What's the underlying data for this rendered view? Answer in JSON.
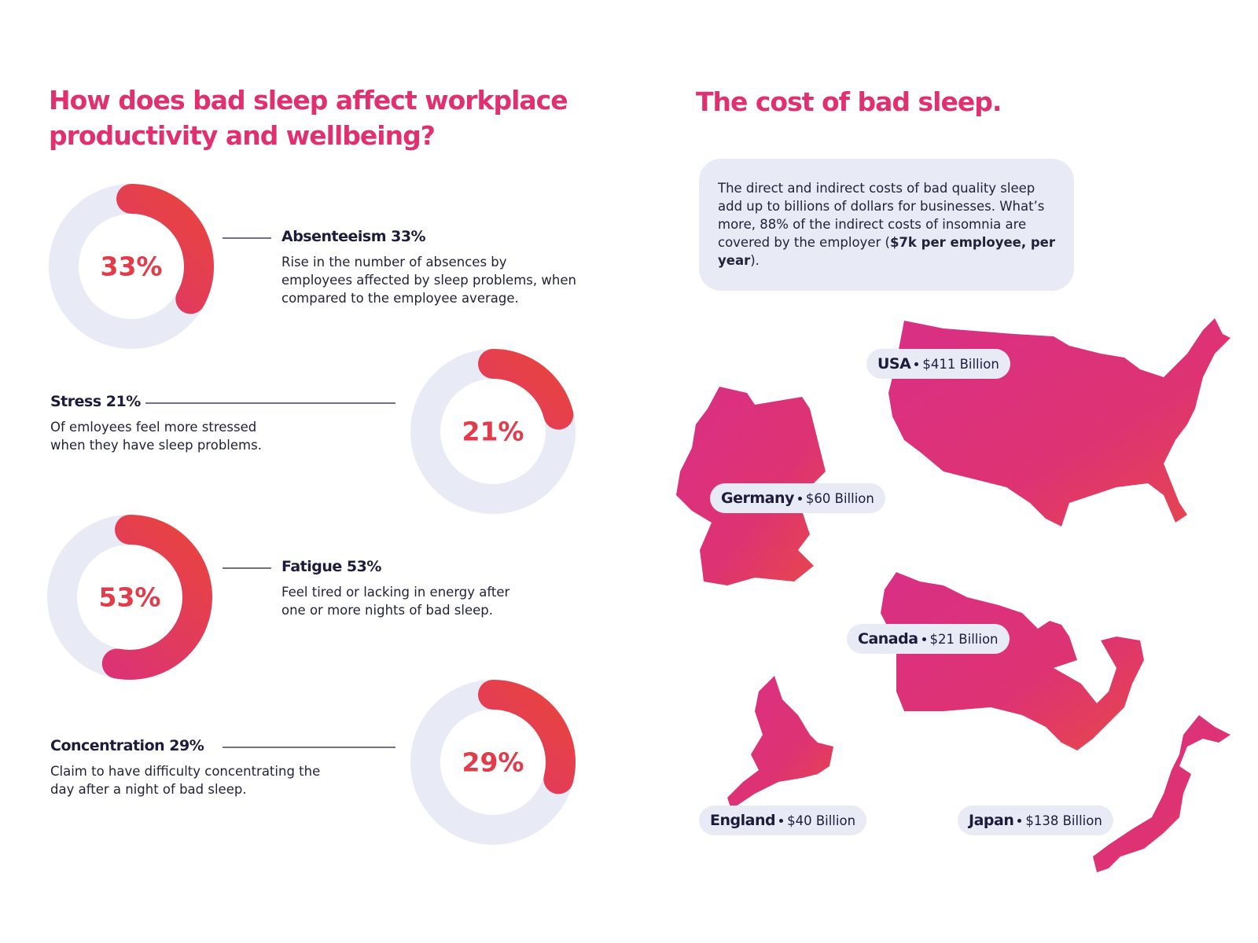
{
  "left": {
    "title": "How does bad sleep affect workplace productivity and wellbeing?",
    "stats": [
      {
        "value": 33,
        "value_label": "33%",
        "heading": "Absenteeism 33%",
        "description": "Rise in the number of absences by employees affected by sleep problems, when compared to the employee average."
      },
      {
        "value": 21,
        "value_label": "21%",
        "heading": "Stress 21%",
        "description": "Of emloyees feel more stressed when they have sleep problems."
      },
      {
        "value": 53,
        "value_label": "53%",
        "heading": "Fatigue 53%",
        "description": "Feel tired or lacking in energy after one or more nights of bad sleep."
      },
      {
        "value": 29,
        "value_label": "29%",
        "heading": "Concentration 29%",
        "description": "Claim to have difficulty concentrating the day after a night of bad sleep."
      }
    ]
  },
  "right": {
    "title": "The cost of bad sleep.",
    "intro": {
      "text": "The direct and indirect costs of bad quality sleep add up to billions of dollars for businesses. What’s more, 88% of the indirect costs of insomnia are covered by the employer (",
      "bold": "$7k per employee, per year",
      "end": ")."
    },
    "countries": [
      {
        "name": "USA",
        "cost": "$411 Billion"
      },
      {
        "name": "Germany",
        "cost": "$60 Billion"
      },
      {
        "name": "Canada",
        "cost": "$21 Billion"
      },
      {
        "name": "England",
        "cost": "$40 Billion"
      },
      {
        "name": "Japan",
        "cost": "$138 Billion"
      }
    ]
  }
}
